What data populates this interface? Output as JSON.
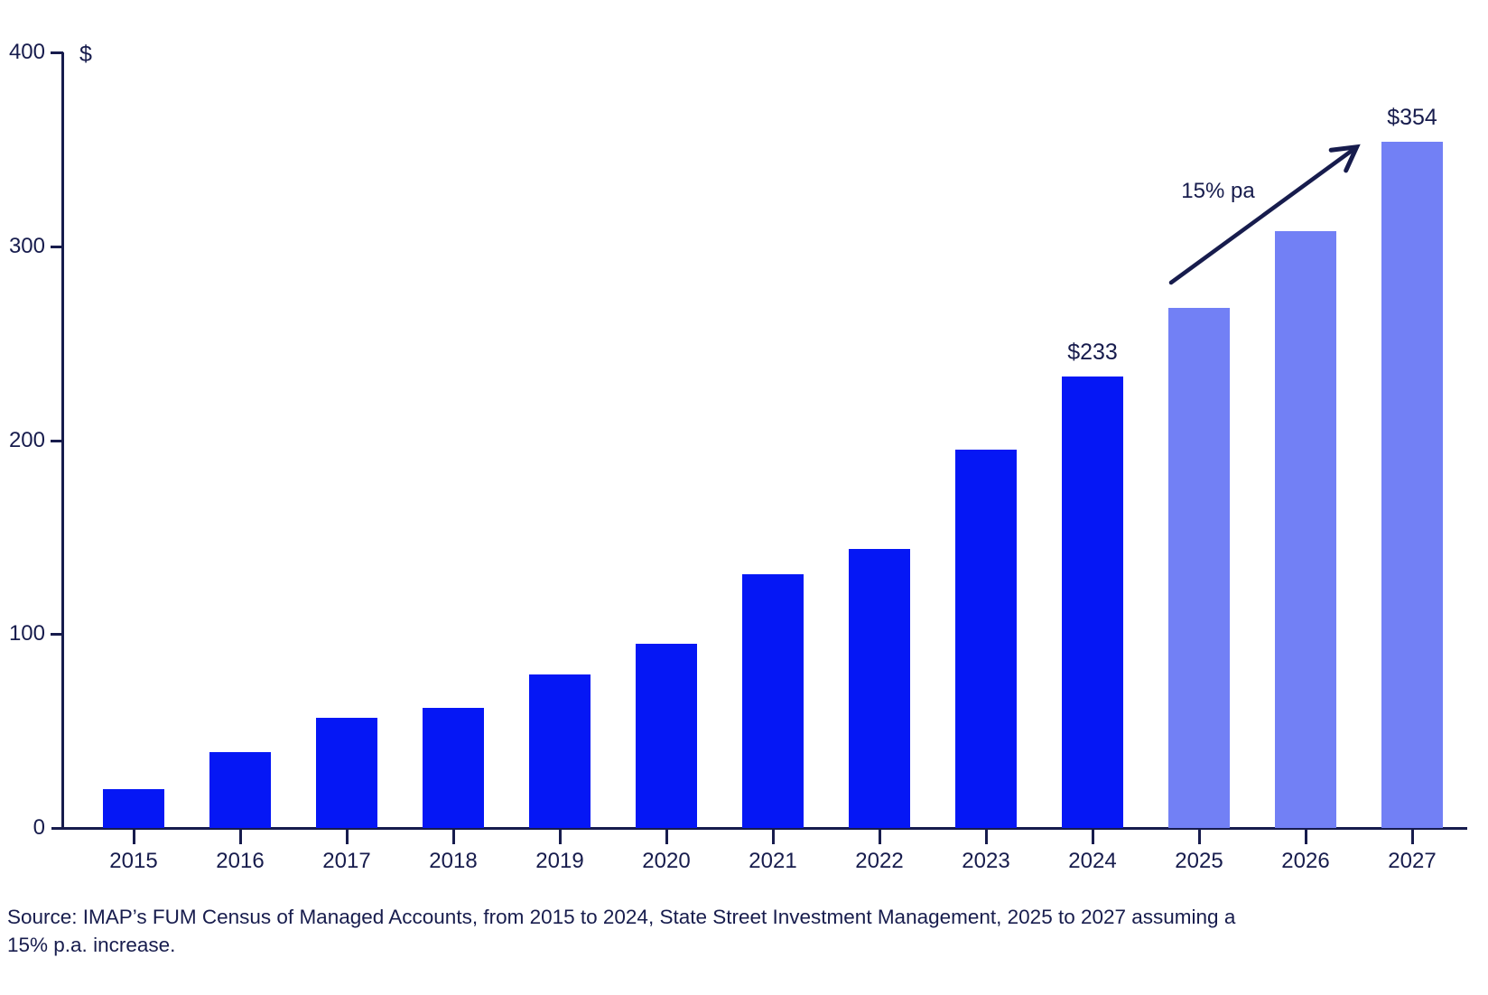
{
  "chart_data": {
    "type": "bar",
    "title": "",
    "unit_label": "$",
    "xlabel": "",
    "ylabel": "$",
    "categories": [
      "2015",
      "2016",
      "2017",
      "2018",
      "2019",
      "2020",
      "2021",
      "2022",
      "2023",
      "2024",
      "2025",
      "2026",
      "2027"
    ],
    "values": [
      20,
      39,
      57,
      62,
      79,
      95,
      131,
      144,
      195,
      233,
      268,
      308,
      354
    ],
    "projected_categories": [
      "2025",
      "2026",
      "2027"
    ],
    "point_labels": {
      "2024": "$233",
      "2027": "$354"
    },
    "annotation": "15% pa",
    "yticks": [
      0,
      100,
      200,
      300,
      400
    ],
    "ylim": [
      0,
      400
    ],
    "grid": false,
    "legend_position": "none",
    "colors": {
      "actual_bar": "#0517f5",
      "projected_bar": "#7280f5",
      "axis": "#171c4d",
      "text": "#171c4d"
    }
  },
  "source": {
    "line1": "Source: IMAP’s FUM Census of Managed Accounts, from 2015 to 2024, State Street Investment Management, 2025 to 2027 assuming a",
    "line2": "15% p.a. increase."
  }
}
